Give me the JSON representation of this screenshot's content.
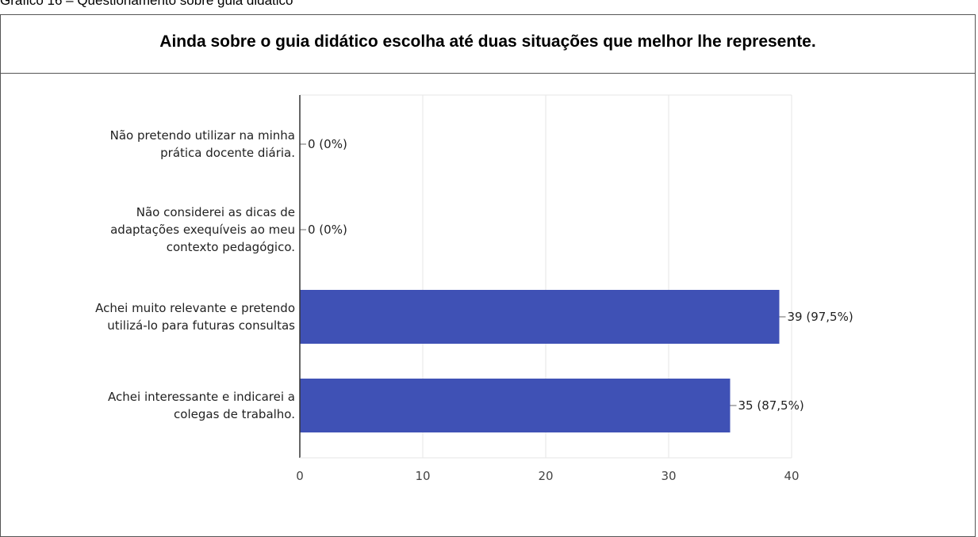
{
  "caption": "Gráfico 16 – Questionamento sobre guia didático",
  "chart_data": {
    "type": "bar",
    "orientation": "horizontal",
    "title": "Ainda sobre o guia didático escolha até duas situações que melhor lhe represente.",
    "xlabel": "",
    "ylabel": "",
    "categories": [
      [
        "Não pretendo utilizar na minha",
        "prática docente diária."
      ],
      [
        "Não considerei as dicas de",
        "adaptações exequíveis ao meu",
        "contexto pedagógico."
      ],
      [
        "Achei muito relevante e pretendo",
        "utilizá-lo para futuras consultas"
      ],
      [
        "Achei interessante e indicarei a",
        "colegas de trabalho."
      ]
    ],
    "values": [
      0,
      0,
      39,
      35
    ],
    "data_labels": [
      "0 (0%)",
      "0 (0%)",
      "39 (97,5%)",
      "35 (87,5%)"
    ],
    "xlim": [
      0,
      40
    ],
    "xticks": [
      0,
      10,
      20,
      30,
      40
    ],
    "grid": true,
    "bar_color": "#3f51b5",
    "grid_color": "#e6e6e6"
  }
}
